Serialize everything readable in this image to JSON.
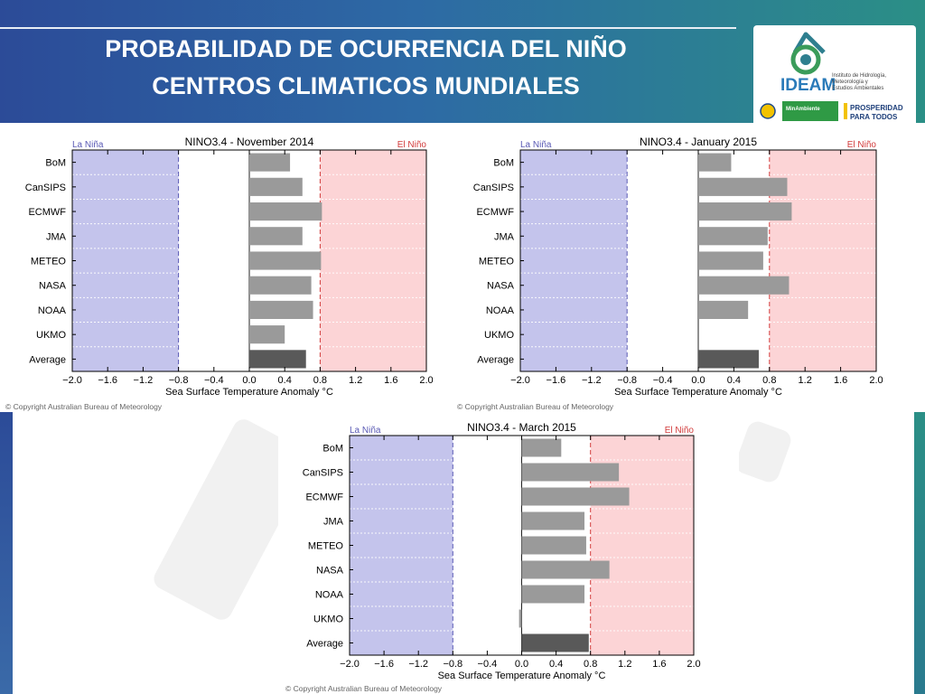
{
  "slide": {
    "title_line1": "PROBABILIDAD DE OCURRENCIA DEL NIÑO",
    "title_line2": "CENTROS CLIMATICOS MUNDIALES",
    "colors": {
      "banner_start": "#2c4b98",
      "banner_end": "#2b8f86"
    }
  },
  "logo": {
    "org_name": "IDEAM",
    "org_subtitle_1": "Instituto de Hidrología,",
    "org_subtitle_2": "Meteorología y",
    "org_subtitle_3": "Estudios Ambientales",
    "ministry": "MinAmbiente",
    "slogan_1": "PROSPERIDAD",
    "slogan_2": "PARA TODOS"
  },
  "copyright": "© Copyright Australian Bureau of Meteorology",
  "chart_data": [
    {
      "type": "bar",
      "orientation": "horizontal",
      "title": "NINO3.4 - November 2014",
      "xlabel": "Sea Surface Temperature Anomaly °C",
      "xlim": [
        -2.0,
        2.0
      ],
      "xticks": [
        -2.0,
        -1.6,
        -1.2,
        -0.8,
        -0.4,
        0.0,
        0.4,
        0.8,
        1.2,
        1.6,
        2.0
      ],
      "xtick_labels": [
        "−2.0",
        "−1.6",
        "−1.2",
        "−0.8",
        "−0.4",
        "0.0",
        "0.4",
        "0.8",
        "1.2",
        "1.6",
        "2.0"
      ],
      "categories": [
        "BoM",
        "CanSIPS",
        "ECMWF",
        "JMA",
        "METEO",
        "NASA",
        "NOAA",
        "UKMO",
        "Average"
      ],
      "values": [
        0.46,
        0.6,
        0.82,
        0.6,
        0.81,
        0.7,
        0.72,
        0.4,
        0.64
      ],
      "thresholds": [
        -0.8,
        0.8
      ],
      "la_nina_label": "La Niña",
      "el_nino_label": "El Niño",
      "grid": true
    },
    {
      "type": "bar",
      "orientation": "horizontal",
      "title": "NINO3.4 - January 2015",
      "xlabel": "Sea Surface Temperature Anomaly °C",
      "xlim": [
        -2.0,
        2.0
      ],
      "xticks": [
        -2.0,
        -1.6,
        -1.2,
        -0.8,
        -0.4,
        0.0,
        0.4,
        0.8,
        1.2,
        1.6,
        2.0
      ],
      "xtick_labels": [
        "−2.0",
        "−1.6",
        "−1.2",
        "−0.8",
        "−0.4",
        "0.0",
        "0.4",
        "0.8",
        "1.2",
        "1.6",
        "2.0"
      ],
      "categories": [
        "BoM",
        "CanSIPS",
        "ECMWF",
        "JMA",
        "METEO",
        "NASA",
        "NOAA",
        "UKMO",
        "Average"
      ],
      "values": [
        0.37,
        1.0,
        1.05,
        0.78,
        0.73,
        1.02,
        0.56,
        null,
        0.68
      ],
      "thresholds": [
        -0.8,
        0.8
      ],
      "la_nina_label": "La Niña",
      "el_nino_label": "El Niño",
      "grid": true
    },
    {
      "type": "bar",
      "orientation": "horizontal",
      "title": "NINO3.4 - March 2015",
      "xlabel": "Sea Surface Temperature Anomaly °C",
      "xlim": [
        -2.0,
        2.0
      ],
      "xticks": [
        -2.0,
        -1.6,
        -1.2,
        -0.8,
        -0.4,
        0.0,
        0.4,
        0.8,
        1.2,
        1.6,
        2.0
      ],
      "xtick_labels": [
        "−2.0",
        "−1.6",
        "−1.2",
        "−0.8",
        "−0.4",
        "0.0",
        "0.4",
        "0.8",
        "1.2",
        "1.6",
        "2.0"
      ],
      "categories": [
        "BoM",
        "CanSIPS",
        "ECMWF",
        "JMA",
        "METEO",
        "NASA",
        "NOAA",
        "UKMO",
        "Average"
      ],
      "values": [
        0.46,
        1.13,
        1.25,
        0.73,
        0.75,
        1.02,
        0.73,
        -0.03,
        0.78
      ],
      "thresholds": [
        -0.8,
        0.8
      ],
      "la_nina_label": "La Niña",
      "el_nino_label": "El Niño",
      "grid": true
    }
  ],
  "chart_colors": {
    "la_nina_fill": "#c4c4ec",
    "el_nino_fill": "#fcd4d6",
    "bar_fill": "#9a9a9a",
    "average_fill": "#595959",
    "la_nina_text": "#5a5ab4",
    "el_nino_text": "#d23c3c"
  }
}
